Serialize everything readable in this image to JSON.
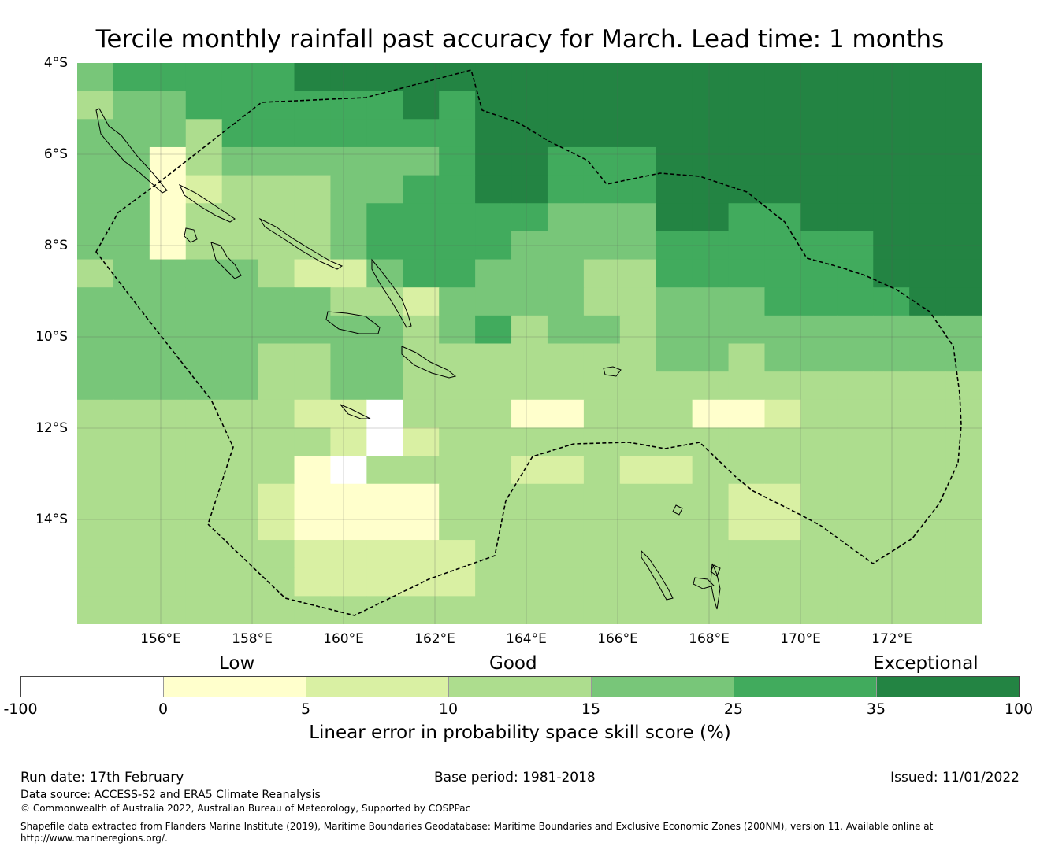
{
  "title": "Tercile monthly rainfall past accuracy for March. Lead time: 1 months",
  "axes": {
    "lat_labels": [
      "4°S",
      "6°S",
      "8°S",
      "10°S",
      "12°S",
      "14°S"
    ],
    "lon_labels": [
      "156°E",
      "158°E",
      "160°E",
      "162°E",
      "164°E",
      "166°E",
      "168°E",
      "170°E",
      "172°E"
    ],
    "lat_range": [
      -4,
      -16.2
    ],
    "lon_range": [
      154.2,
      174
    ]
  },
  "colorbar": {
    "category_labels": [
      "Low",
      "Good",
      "Exceptional"
    ],
    "tick_labels": [
      "-100",
      "0",
      "5",
      "10",
      "15",
      "25",
      "35",
      "100"
    ],
    "colors": [
      "#ffffff",
      "#ffffcc",
      "#d9f0a3",
      "#addd8e",
      "#78c679",
      "#41ab5d",
      "#238443"
    ],
    "label": "Linear error in probability space skill score (%)"
  },
  "chart_data": {
    "type": "heatmap",
    "title": "Tercile monthly rainfall past accuracy for March. Lead time: 1 months",
    "variable": "Linear error in probability space skill score (%)",
    "grid_resolution_deg": 0.83,
    "legend": "7 classes: 0 = -100 to 0, 1 = 0 to 5, 2 = 5 to 10, 3 = 10 to 15, 4 = 15 to 25, 5 = 25 to 35, 6 = 35 to 100",
    "class_grid": [
      "4555556666666666666666666",
      "3445555556566666666666666",
      "4443555555566666666666666",
      "4413444444566555666666666",
      "4412333445566555666666666",
      "4413333455555444665566666",
      "4413333455554444555555666",
      "3444432245544433555555666",
      "4444444332444433444555566",
      "4444444443453443444444444",
      "4444433443333333443444444",
      "4444433443333333333333333",
      "3333332203331133311233333",
      "3333333202333333333333333",
      "3333331033332232233333333",
      "3333321111333333332233333",
      "3333321111333333332233333",
      "3333332222233333333333333",
      "3333332222233333333333333",
      "3333333333333333333333333"
    ],
    "boundary": "dashed EEZ outline"
  },
  "footer": {
    "run_date": "Run date: 17th February",
    "base_period": "Base period: 1981-2018",
    "issued": "Issued: 11/01/2022",
    "data_source": "Data source: ACCESS-S2 and ERA5 Climate Reanalysis",
    "copyright": "© Commonwealth of Australia 2022, Australian Bureau of Meteorology, Supported by COSPPac",
    "shapefile": "Shapefile data extracted from Flanders Marine Institute (2019), Maritime Boundaries Geodatabase: Maritime Boundaries and Exclusive Economic Zones (200NM), version 11. Available online at",
    "url": "http://www.marineregions.org/."
  }
}
